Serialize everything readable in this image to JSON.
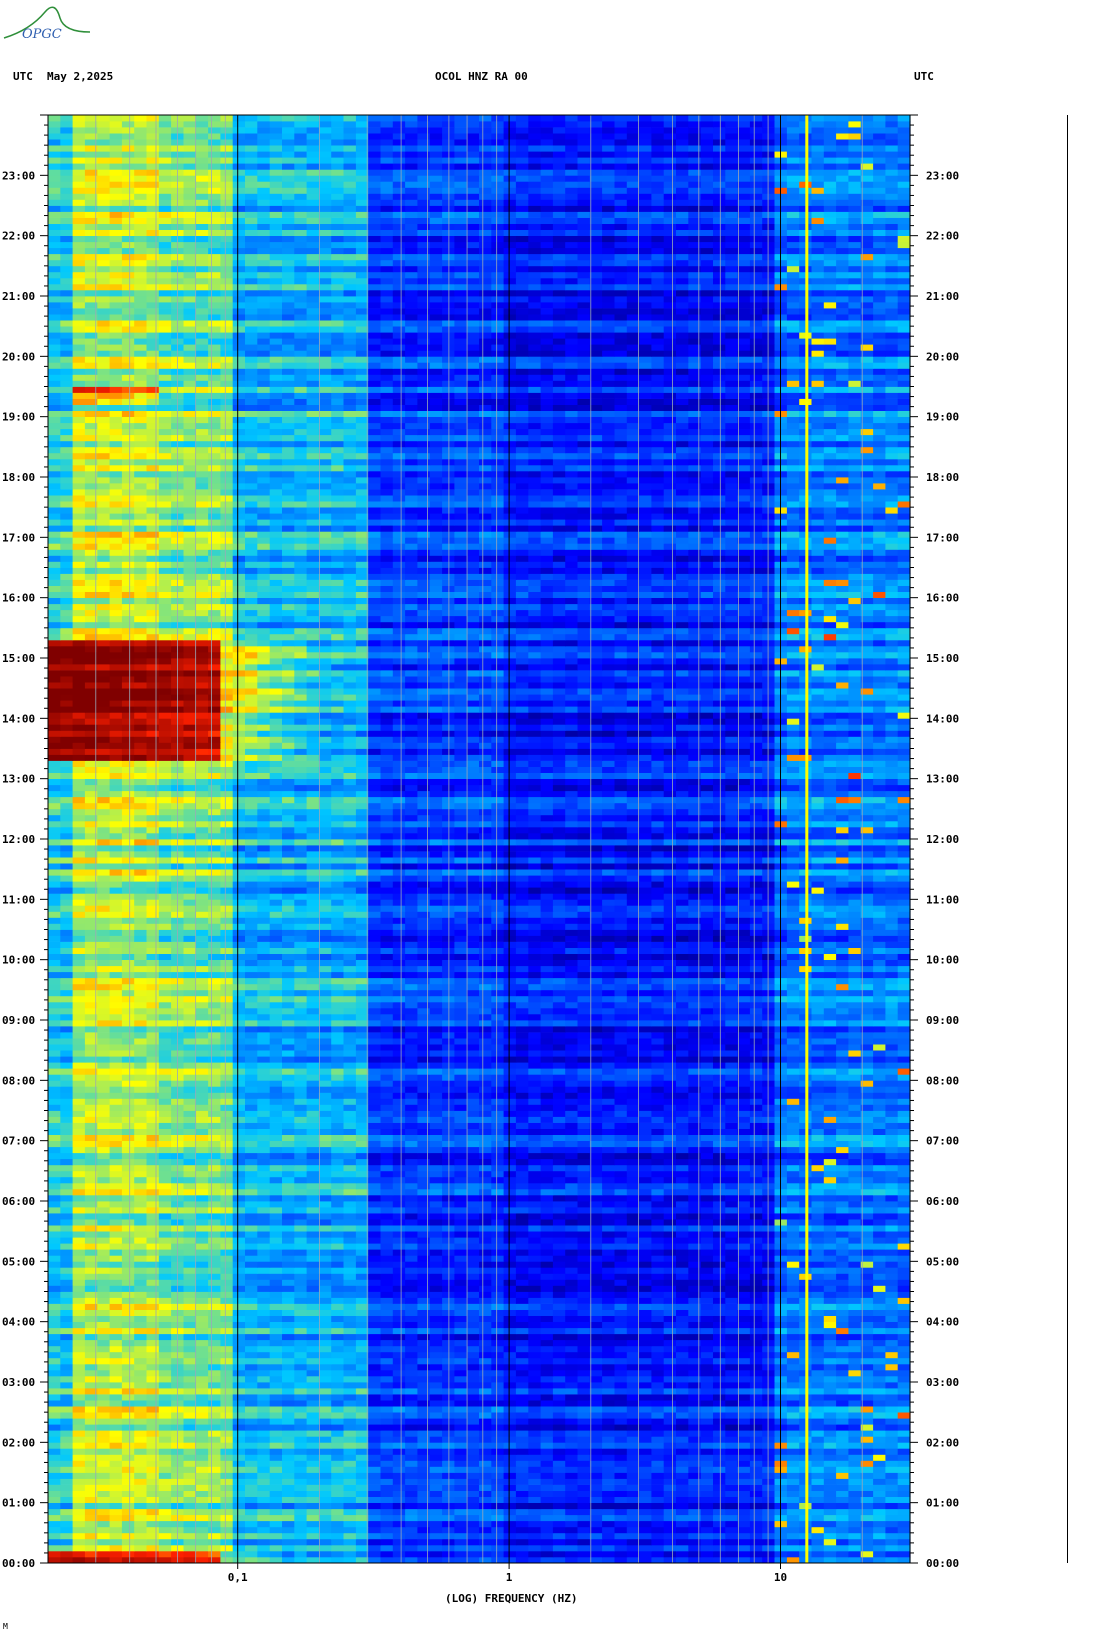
{
  "logo_text": "OPGC",
  "header": {
    "left_tz": "UTC",
    "date": "May 2,2025",
    "station": "OCOL HNZ RA 00",
    "right_tz": "UTC"
  },
  "footnote": "M",
  "chart_data": {
    "type": "heatmap",
    "title": "OCOL HNZ RA 00",
    "xlabel": "(LOG) FREQUENCY (HZ)",
    "ylabel": "UTC",
    "x_scale": "log",
    "xlim": [
      0.02,
      30
    ],
    "x_ticks": [
      {
        "value": 0.1,
        "label": "0,1"
      },
      {
        "value": 1,
        "label": "1"
      },
      {
        "value": 10,
        "label": "10"
      }
    ],
    "ylim": [
      "00:00",
      "24:00"
    ],
    "y_ticks": [
      "00:00",
      "01:00",
      "02:00",
      "03:00",
      "04:00",
      "05:00",
      "06:00",
      "07:00",
      "08:00",
      "09:00",
      "10:00",
      "11:00",
      "12:00",
      "13:00",
      "14:00",
      "15:00",
      "16:00",
      "17:00",
      "18:00",
      "19:00",
      "20:00",
      "21:00",
      "22:00",
      "23:00"
    ],
    "colormap": [
      "#000080",
      "#0000ff",
      "#00c8ff",
      "#ffff00",
      "#ff2000",
      "#800000"
    ],
    "bands": [
      {
        "f_low": 0.02,
        "f_high": 0.025,
        "level": 0.42
      },
      {
        "f_low": 0.025,
        "f_high": 0.05,
        "level": 0.55
      },
      {
        "f_low": 0.05,
        "f_high": 0.1,
        "level": 0.5
      },
      {
        "f_low": 0.1,
        "f_high": 0.3,
        "level": 0.38
      },
      {
        "f_low": 0.3,
        "f_high": 1,
        "level": 0.22
      },
      {
        "f_low": 1,
        "f_high": 10,
        "level": 0.18
      },
      {
        "f_low": 10,
        "f_high": 30,
        "level": 0.3
      }
    ],
    "events": [
      {
        "start": "13:18",
        "end": "15:20",
        "f_low": 0.02,
        "f_high": 0.3,
        "level": 1.0
      },
      {
        "start": "19:10",
        "end": "19:30",
        "f_low": 0.025,
        "f_high": 0.1,
        "level": 0.75
      },
      {
        "start": "00:00",
        "end": "00:10",
        "f_low": 0.02,
        "f_high": 0.3,
        "level": 0.9
      }
    ],
    "persistent_lines": [
      {
        "freq": 12.5,
        "level": 0.6
      }
    ]
  }
}
